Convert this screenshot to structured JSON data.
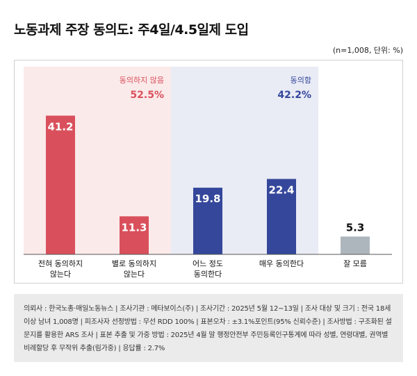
{
  "header": {
    "title": "노동과제 주장 동의도: 주4일/4.5일제 도입",
    "subtitle": "(n=1,008, 단위: %)"
  },
  "footnote": {
    "text": "의뢰사 : 한국노총·매일노동뉴스 | 조사기관 : 메타보이스(주) | 조사기간 : 2025년 5월 12~13일 | 조사 대상 및 크기 : 전국 18세 이상 남녀 1,008명 | 피조사자 선정방법 : 무선 RDD 100% | 표본오차 : ±3.1%포인트(95% 신뢰수준) | 조사방법 : 구조화된 설문지를 활용한 ARS 조사 | 표본 추출 및 가중 방법 : 2025년 4월 말 행정안전부 주민등록인구통계에 따라 성별, 연령대별, 권역별 비례할당 후 무작위 추출(림가중) | 응답률 : 2.7%"
  },
  "colors": {
    "disagree": "#d9505c",
    "agree": "#34479b",
    "unknown": "#aeb6bd",
    "disagree_bg": "#fbeaea",
    "agree_bg": "#e9ebf5"
  },
  "chart_data": {
    "type": "bar",
    "categories": [
      [
        "전혀 동의하지",
        "않는다"
      ],
      [
        "별로 동의하지",
        "않는다"
      ],
      [
        "어느 정도",
        "동의한다"
      ],
      [
        "매우 동의한다"
      ],
      [
        "잘 모름"
      ]
    ],
    "values": [
      41.2,
      11.3,
      19.8,
      22.4,
      5.3
    ],
    "groups": [
      "disagree",
      "disagree",
      "agree",
      "agree",
      "unknown"
    ],
    "ylim": [
      0,
      45
    ],
    "group_labels": [
      {
        "name": "동의하지 않음",
        "total": "52.5%",
        "group": "disagree"
      },
      {
        "name": "동의함",
        "total": "42.2%",
        "group": "agree"
      }
    ]
  }
}
